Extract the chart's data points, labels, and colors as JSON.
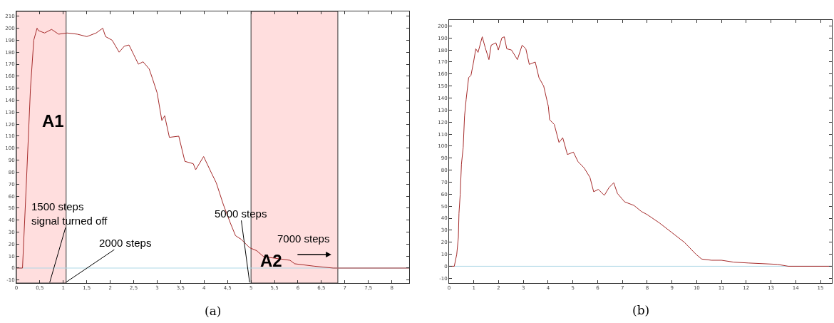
{
  "chart_data": [
    {
      "type": "line",
      "xlim": [
        0,
        8.37
      ],
      "ylim": [
        -12.5,
        214
      ],
      "xticks": [
        0,
        {
          "value": 0.5,
          "label": "0,5"
        },
        1,
        {
          "value": 1.5,
          "label": "1,5"
        },
        2,
        {
          "value": 2.5,
          "label": "2,5"
        },
        3,
        {
          "value": 3.5,
          "label": "3,5"
        },
        4,
        {
          "value": 4.5,
          "label": "4,5"
        },
        5,
        {
          "value": 5.5,
          "label": "5,5"
        },
        6,
        {
          "value": 6.5,
          "label": "6,5"
        },
        7,
        {
          "value": 7.5,
          "label": "7,5"
        },
        8
      ],
      "yticks": [
        -10,
        0,
        10,
        20,
        30,
        40,
        50,
        60,
        70,
        80,
        90,
        100,
        110,
        120,
        130,
        140,
        150,
        160,
        170,
        180,
        190,
        200,
        210
      ],
      "grid": false,
      "series": [
        {
          "color": "#a52a2a",
          "x": [
            0,
            0.13,
            0.2,
            0.3,
            0.37,
            0.44,
            0.47,
            0.6,
            0.75,
            0.9,
            1.08,
            1.3,
            1.5,
            1.7,
            1.84,
            1.9,
            2.04,
            2.19,
            2.3,
            2.4,
            2.5,
            2.6,
            2.7,
            2.83,
            2.9,
            3.0,
            3.1,
            3.16,
            3.26,
            3.46,
            3.59,
            3.77,
            3.82,
            3.99,
            4.16,
            4.26,
            4.41,
            4.56,
            4.67,
            4.79,
            4.97,
            5.12,
            5.27,
            5.83,
            5.93,
            6.34,
            6.75,
            8.37
          ],
          "values": [
            0,
            0,
            60,
            150,
            190,
            200,
            198,
            196,
            199,
            195,
            196,
            195,
            193,
            196,
            200,
            193,
            190,
            180,
            185,
            186,
            178,
            170,
            172,
            166,
            158,
            146,
            123,
            127,
            109,
            110,
            89,
            87,
            82,
            93,
            79,
            71,
            53,
            37.5,
            27,
            24,
            17,
            14.5,
            9.5,
            6.5,
            3.6,
            1.6,
            0,
            0
          ]
        }
      ],
      "ref_lines": [
        {
          "axis": "y",
          "value": 0,
          "color": "#add8e6"
        }
      ],
      "bands": [
        {
          "axis": "x",
          "from": 0,
          "to": 1.06,
          "color": "#ffdede"
        },
        {
          "axis": "x",
          "from": 5,
          "to": 6.85,
          "color": "#ffdede"
        }
      ],
      "annotations": [
        "A1",
        {
          "text": "A2",
          "x": 5.43,
          "y": 6.5
        },
        {
          "text": "1500 steps\nsignal turned off",
          "x": 0.71,
          "y": -12
        },
        {
          "text": "2000 steps",
          "x": 1.05,
          "y": -12
        },
        {
          "text": "5000 steps",
          "x": 4.97,
          "y": -12
        },
        "7000 steps",
        "(a)"
      ]
    },
    {
      "type": "line",
      "xlim": [
        0,
        15.46
      ],
      "ylim": [
        -14,
        205
      ],
      "xticks": [
        0,
        1,
        2,
        3,
        4,
        5,
        6,
        7,
        8,
        9,
        10,
        11,
        12,
        13,
        14,
        15
      ],
      "yticks": [
        -10,
        0,
        10,
        20,
        30,
        40,
        50,
        60,
        70,
        80,
        90,
        100,
        110,
        120,
        130,
        140,
        150,
        160,
        170,
        180,
        190,
        200
      ],
      "grid": false,
      "series": [
        {
          "color": "#a52a2a",
          "x": [
            0,
            0.21,
            0.31,
            0.375,
            0.4,
            0.45,
            0.5,
            0.57,
            0.625,
            0.69,
            0.79,
            0.885,
            0.98,
            1.08,
            1.17,
            1.34,
            1.46,
            1.61,
            1.7,
            1.89,
            1.99,
            2.13,
            2.23,
            2.33,
            2.52,
            2.76,
            2.95,
            3.1,
            3.24,
            3.48,
            3.63,
            3.82,
            4.01,
            4.06,
            4.25,
            4.44,
            4.59,
            4.78,
            5.02,
            5.21,
            5.45,
            5.69,
            5.84,
            6.03,
            6.27,
            6.46,
            6.65,
            6.8,
            7.09,
            7.47,
            7.76,
            8,
            8.5,
            9,
            9.5,
            9.97,
            10.2,
            10.6,
            11.0,
            11.5,
            12.1,
            13.25,
            13.7,
            15.46
          ],
          "values": [
            0,
            0,
            10,
            24,
            44,
            60,
            85,
            99,
            125,
            139,
            157,
            159,
            169,
            181,
            178,
            191,
            182,
            172,
            184,
            186,
            180,
            190,
            191,
            181,
            180,
            172,
            184,
            181,
            168,
            170,
            157,
            150,
            133,
            122,
            118,
            103,
            107,
            93,
            95,
            87,
            82,
            74,
            62,
            64,
            59,
            65.5,
            69.5,
            60.6,
            53.6,
            50.6,
            45.7,
            43,
            36,
            28,
            20,
            10,
            6,
            5,
            5,
            3.4,
            2.7,
            1.6,
            0,
            0
          ]
        }
      ],
      "ref_lines": [
        {
          "axis": "y",
          "value": 0,
          "color": "#add8e6"
        }
      ],
      "annotations": [
        "(b)"
      ]
    }
  ]
}
